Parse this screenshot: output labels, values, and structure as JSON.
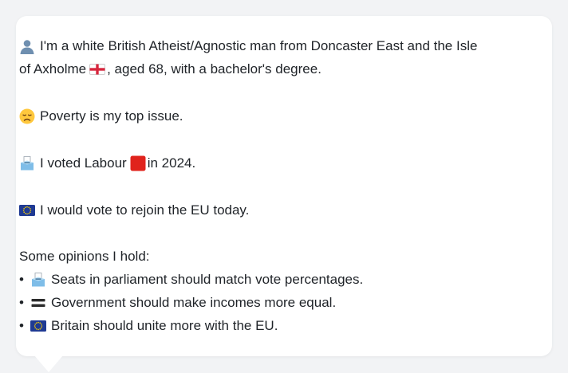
{
  "intro": {
    "icon": "person-silhouette-icon",
    "line1": "I'm a white British Atheist/Agnostic man from Doncaster East and the Isle",
    "line2_before": "of Axholme",
    "flag_icon": "england-flag-icon",
    "line2_after": ", aged 68, with a bachelor's degree."
  },
  "top_issue": {
    "icon": "disappointed-face-icon",
    "text": "Poverty is my top issue."
  },
  "vote": {
    "icon": "ballot-box-icon",
    "text_before": "I voted Labour",
    "party_icon": "red-square-icon",
    "party_color": "#e0231c",
    "text_after": "in 2024."
  },
  "eu": {
    "icon": "eu-flag-icon",
    "text": "I would vote to rejoin the EU today."
  },
  "opinions": {
    "heading": "Some opinions I hold:",
    "bullet": "•",
    "items": [
      {
        "icon": "ballot-box-icon",
        "text": "Seats in parliament should match vote percentages."
      },
      {
        "icon": "equals-sign-icon",
        "text": "Government should make incomes more equal."
      },
      {
        "icon": "eu-flag-icon",
        "text": "Britain should unite more with the EU."
      }
    ]
  },
  "colors": {
    "background": "#f2f3f5",
    "card": "#ffffff",
    "text": "#1f2328",
    "eu_blue": "#1f3a93",
    "eu_star": "#ffd400",
    "ballot_blue": "#5aa9e6"
  }
}
